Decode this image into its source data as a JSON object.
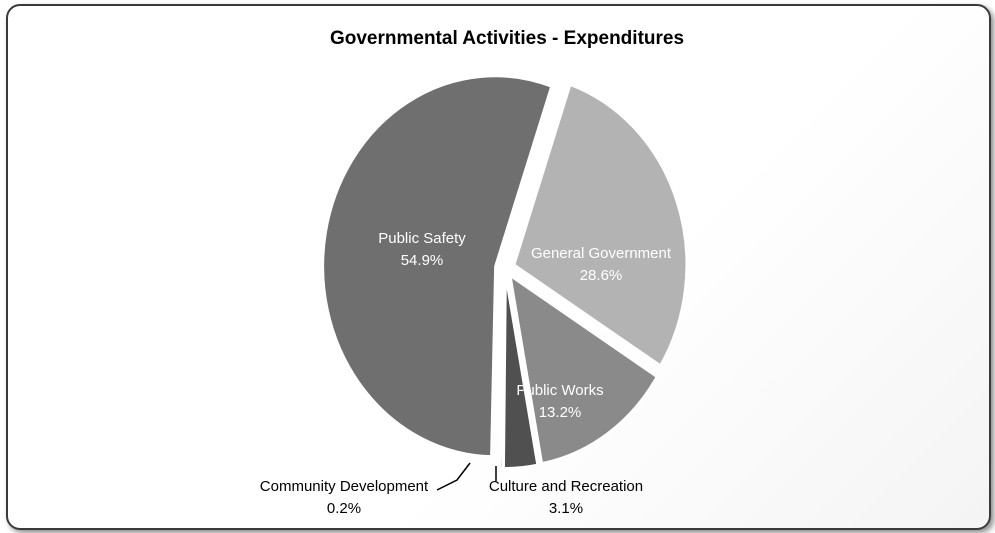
{
  "chart_data": {
    "type": "pie",
    "title": "Governmental Activities - Expenditures",
    "slices": [
      {
        "label": "Public Safety",
        "pct_label": "54.9%",
        "value": 54.9,
        "color": "#6f6f6f",
        "label_color": "#ffffff"
      },
      {
        "label": "General Government",
        "pct_label": "28.6%",
        "value": 28.6,
        "color": "#b3b3b3",
        "label_color": "#ffffff"
      },
      {
        "label": "Public Works",
        "pct_label": "13.2%",
        "value": 13.2,
        "color": "#8a8a8a",
        "label_color": "#ffffff"
      },
      {
        "label": "Culture and Recreation",
        "pct_label": "3.1%",
        "value": 3.1,
        "color": "#505050",
        "label_color": "#000000"
      },
      {
        "label": "Community Development",
        "pct_label": "0.2%",
        "value": 0.2,
        "color": "#3c3c3c",
        "label_color": "#000000"
      }
    ]
  }
}
